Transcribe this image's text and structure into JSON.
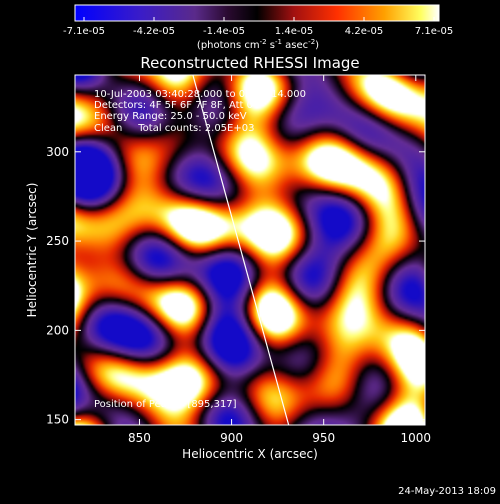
{
  "colorbar": {
    "ticks": [
      "-7.1e-05",
      "-4.2e-05",
      "-1.4e-05",
      "1.4e-05",
      "4.2e-05",
      "7.1e-05"
    ],
    "units_prefix": "(photons cm",
    "units_sup1": "-2",
    "units_mid": " s",
    "units_sup2": "-1",
    "units_mid2": " asec",
    "units_sup3": "-2",
    "units_suffix": ")"
  },
  "chart_data": {
    "type": "heatmap",
    "title": "Reconstructed RHESSI Image",
    "xlabel": "Heliocentric X (arcsec)",
    "ylabel": "Heliocentric Y (arcsec)",
    "xlim": [
      815,
      1005
    ],
    "ylim": [
      147,
      343
    ],
    "xticks": [
      850,
      900,
      950,
      1000
    ],
    "yticks": [
      150,
      200,
      250,
      300
    ],
    "xtick_labels": [
      "850",
      "900",
      "950",
      "1000"
    ],
    "ytick_labels": [
      "150",
      "200",
      "250",
      "300"
    ],
    "colormap": "rhessi-blue-purple-red-yellow-white",
    "value_range": [
      -7.1e-05,
      7.1e-05
    ],
    "limb_line": [
      [
        879,
        343
      ],
      [
        931,
        147
      ]
    ],
    "annotations": [
      "10-Jul-2003 03:40:28.000 to 03:44:14.000",
      "Detectors: 4F 5F 6F 7F 8F, Att 0",
      "Energy Range: 25.0 - 50.0 keV",
      "Clean     Total counts: 2.05E+03"
    ],
    "peak_label": "Position of Peak = [895,317]",
    "peak": [
      895,
      317
    ]
  },
  "footer": {
    "timestamp": "24-May-2013 18:09"
  }
}
